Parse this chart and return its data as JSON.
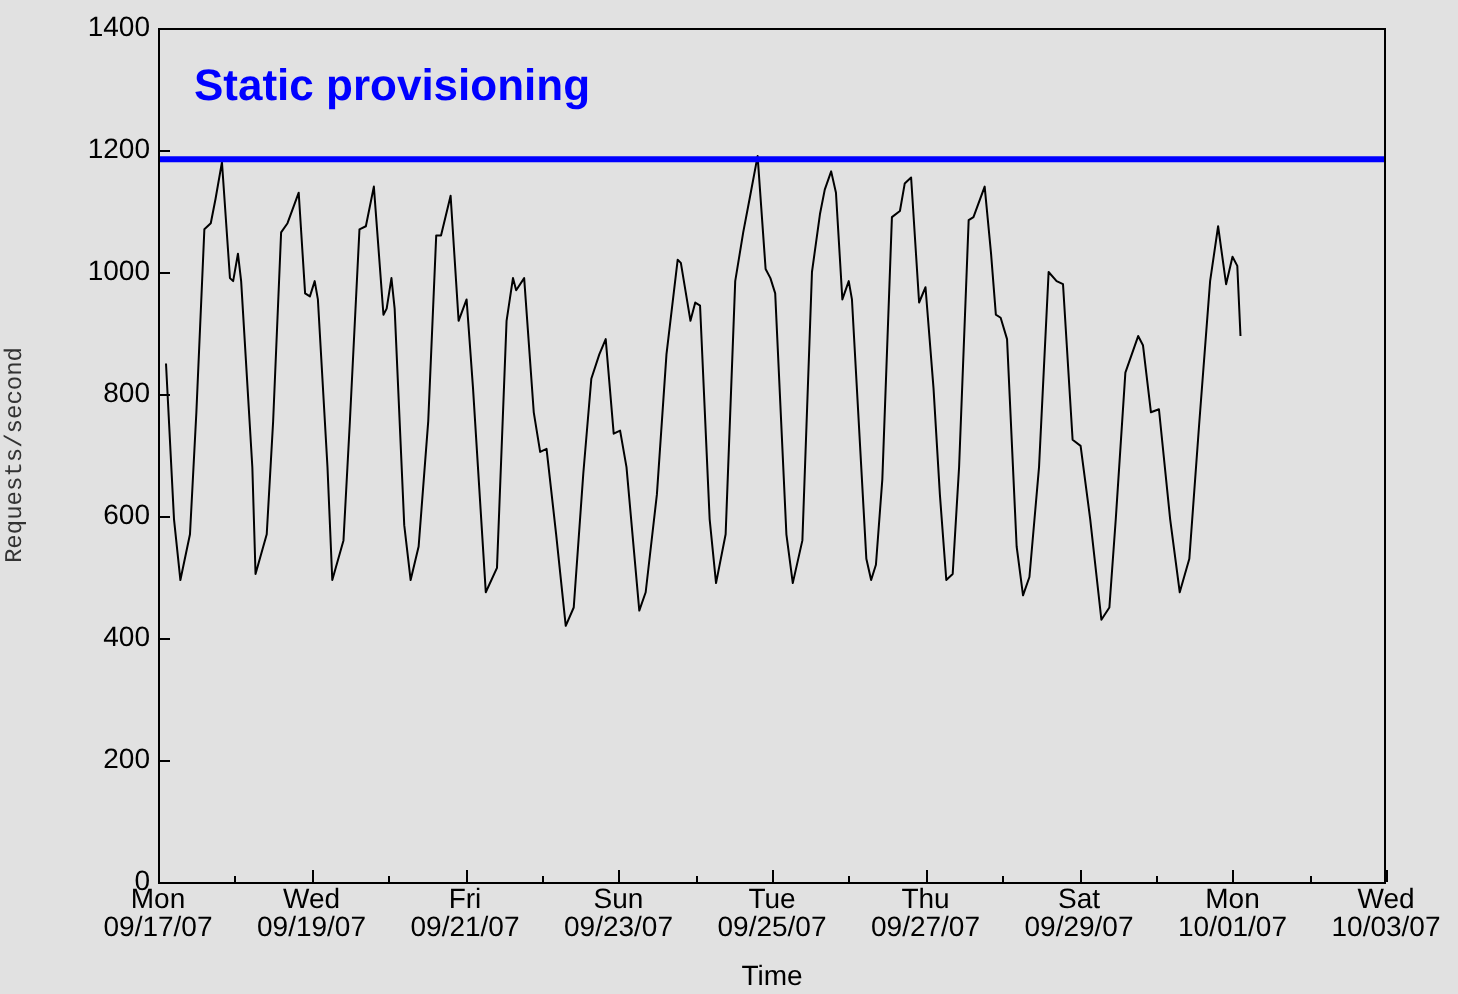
{
  "chart_data": {
    "type": "line",
    "xlabel": "Time",
    "ylabel": "Requests/second",
    "x": [
      "--09-17T02:30",
      "--09-17T05:00",
      "--09-17T07:00",
      "--09-17T10:00",
      "--09-17T12:00",
      "--09-17T14:30",
      "--09-17T16:30",
      "--09-17T18:00",
      "--09-17T20:00",
      "--09-17T22:30",
      "--09-17T23:30",
      "--09-18T01:00",
      "--09-18T02:00",
      "--09-18T05:30",
      "--09-18T06:30",
      "--09-18T10:00",
      "--09-18T12:00",
      "--09-18T14:30",
      "--09-18T16:30",
      "--09-18T20:00",
      "--09-18T22:00",
      "--09-18T23:30",
      "--09-19T01:00",
      "--09-19T02:00",
      "--09-19T05:00",
      "--09-19T06:30",
      "--09-19T10:00",
      "--09-19T12:00",
      "--09-19T15:00",
      "--09-19T17:00",
      "--09-19T19:30",
      "--09-19T22:30",
      "--09-19T23:30",
      "--09-20T01:00",
      "--09-20T02:00",
      "--09-20T05:00",
      "--09-20T07:00",
      "--09-20T09:30",
      "--09-20T12:30",
      "--09-20T15:00",
      "--09-20T16:30",
      "--09-20T19:30",
      "--09-20T22:00",
      "--09-21T00:30",
      "--09-21T02:30",
      "--09-21T06:30",
      "--09-21T10:00",
      "--09-21T13:00",
      "--09-21T15:00",
      "--09-21T16:00",
      "--09-21T18:30",
      "--09-21T21:30",
      "--09-21T23:30",
      "--09-22T01:30",
      "--09-22T04:30",
      "--09-22T07:30",
      "--09-22T10:00",
      "--09-22T13:00",
      "--09-22T15:30",
      "--09-22T18:00",
      "--09-22T20:00",
      "--09-22T22:30",
      "--09-23T00:30",
      "--09-23T02:30",
      "--09-23T06:30",
      "--09-23T08:30",
      "--09-23T12:00",
      "--09-23T15:00",
      "--09-23T18:30",
      "--09-23T19:30",
      "--09-23T22:30",
      "--09-24T00:00",
      "--09-24T01:30",
      "--09-24T04:30",
      "--09-24T06:30",
      "--09-24T09:30",
      "--09-24T12:30",
      "--09-24T15:00",
      "--09-24T17:00",
      "--09-24T19:30",
      "--09-24T22:00",
      "--09-24T23:30",
      "--09-25T01:00",
      "--09-25T04:30",
      "--09-25T06:30",
      "--09-25T09:30",
      "--09-25T12:30",
      "--09-25T15:00",
      "--09-25T16:30",
      "--09-25T18:30",
      "--09-25T20:00",
      "--09-25T22:00",
      "--09-26T00:00",
      "--09-26T01:00",
      "--09-26T05:30",
      "--09-26T07:00",
      "--09-26T08:30",
      "--09-26T10:30",
      "--09-26T13:30",
      "--09-26T16:00",
      "--09-26T17:30",
      "--09-26T19:30",
      "--09-26T22:00",
      "--09-27T00:00",
      "--09-27T02:30",
      "--09-27T04:30",
      "--09-27T06:30",
      "--09-27T08:30",
      "--09-27T10:30",
      "--09-27T13:30",
      "--09-27T15:00",
      "--09-27T18:30",
      "--09-27T20:30",
      "--09-27T22:00",
      "--09-27T23:30",
      "--09-28T01:30",
      "--09-28T04:30",
      "--09-28T06:30",
      "--09-28T08:30",
      "--09-28T11:30",
      "--09-28T14:30",
      "--09-28T17:00",
      "--09-28T19:00",
      "--09-28T22:00",
      "--09-29T00:30",
      "--09-29T03:30",
      "--09-29T07:00",
      "--09-29T09:30",
      "--09-29T11:30",
      "--09-29T14:30",
      "--09-29T18:30",
      "--09-29T20:00",
      "--09-29T22:30",
      "--09-30T01:00",
      "--09-30T04:30",
      "--09-30T07:30",
      "--09-30T10:30",
      "--09-30T13:30",
      "--09-30T17:00",
      "--09-30T19:30",
      "--09-30T22:00",
      "--10-01T00:00",
      "--10-01T01:30",
      "--10-01T02:30"
    ],
    "series": [
      {
        "color": "#000000",
        "values": [
          850,
          595,
          495,
          570,
          770,
          1070,
          1080,
          1120,
          1180,
          990,
          985,
          1030,
          985,
          680,
          505,
          570,
          755,
          1065,
          1080,
          1130,
          965,
          960,
          985,
          955,
          680,
          495,
          560,
          755,
          1070,
          1075,
          1140,
          930,
          940,
          990,
          940,
          585,
          495,
          550,
          755,
          1060,
          1060,
          1125,
          920,
          955,
          810,
          475,
          515,
          920,
          990,
          970,
          990,
          770,
          705,
          710,
          570,
          420,
          450,
          670,
          825,
          865,
          890,
          735,
          740,
          680,
          445,
          475,
          635,
          865,
          1020,
          1015,
          920,
          950,
          945,
          595,
          490,
          570,
          985,
          1065,
          1120,
          1190,
          1005,
          990,
          965,
          570,
          490,
          560,
          1000,
          1095,
          1135,
          1165,
          1130,
          955,
          985,
          955,
          530,
          495,
          520,
          660,
          1090,
          1100,
          1145,
          1155,
          950,
          975,
          810,
          635,
          495,
          505,
          680,
          1085,
          1090,
          1140,
          1030,
          930,
          925,
          890,
          550,
          470,
          500,
          680,
          1000,
          985,
          980,
          725,
          715,
          595,
          430,
          450,
          595,
          835,
          895,
          880,
          770,
          775,
          595,
          475,
          530,
          745,
          985,
          1075,
          980,
          1025,
          1010,
          895
        ]
      }
    ],
    "xlim": [
      "--09-17",
      "--10-03"
    ],
    "xticks": [
      {
        "value": "--09-17",
        "label": "Mon\n09/17/07"
      },
      {
        "value": "--09-18",
        "label": null
      },
      {
        "value": "--09-19",
        "label": "Wed\n09/19/07"
      },
      {
        "value": "--09-20",
        "label": null
      },
      {
        "value": "--09-21",
        "label": "Fri\n09/21/07"
      },
      {
        "value": "--09-22",
        "label": null
      },
      {
        "value": "--09-23",
        "label": "Sun\n09/23/07"
      },
      {
        "value": "--09-24",
        "label": null
      },
      {
        "value": "--09-25",
        "label": "Tue\n09/25/07"
      },
      {
        "value": "--09-26",
        "label": null
      },
      {
        "value": "--09-27",
        "label": "Thu\n09/27/07"
      },
      {
        "value": "--09-28",
        "label": null
      },
      {
        "value": "--09-29",
        "label": "Sat\n09/29/07"
      },
      {
        "value": "--09-30",
        "label": null
      },
      {
        "value": "--10-01",
        "label": "Mon\n10/01/07"
      },
      {
        "value": "--10-02",
        "label": null
      },
      {
        "value": "--10-03",
        "label": "Wed\n10/03/07"
      }
    ],
    "ylim": [
      0,
      1400
    ],
    "yticks": [
      0,
      200,
      400,
      600,
      800,
      1000,
      1200,
      1400
    ],
    "ref_lines": [
      {
        "axis": "y",
        "value": 1185,
        "label": "Static provisioning",
        "color": "#0000ff"
      }
    ],
    "grid": false,
    "legend": false,
    "marker": "none",
    "line_style": "solid"
  }
}
